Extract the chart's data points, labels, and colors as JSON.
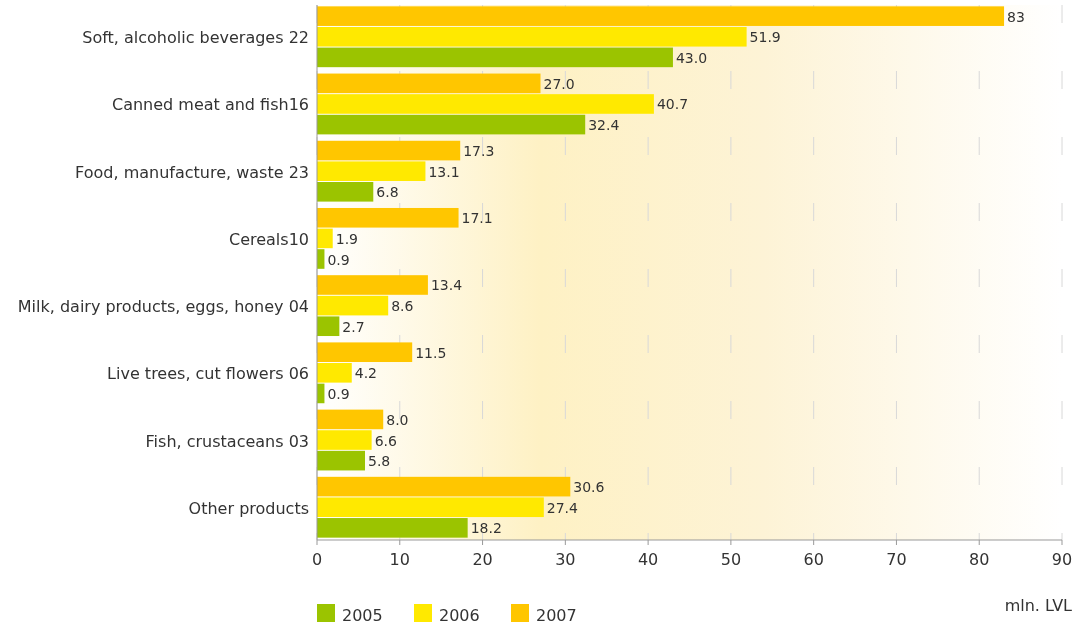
{
  "chart_data": {
    "type": "bar",
    "orientation": "horizontal",
    "xlabel": "mln. LVL",
    "categories": [
      "Soft, alcoholic beverages 22",
      "Canned meat and fish16",
      "Food, manufacture, waste 23",
      "Cereals10",
      "Milk, dairy products, eggs, honey 04",
      "Live trees, cut flowers  06",
      "Fish, crustaceans 03",
      "Other products"
    ],
    "series": [
      {
        "name": "2007",
        "color": "#ffc600",
        "values": [
          83,
          27.0,
          17.3,
          17.1,
          13.4,
          11.5,
          8.0,
          30.6
        ],
        "value_labels": [
          "83",
          "27.0",
          "17.3",
          "17.1",
          "13.4",
          "11.5",
          "8.0",
          "30.6"
        ]
      },
      {
        "name": "2006",
        "color": "#ffe900",
        "values": [
          51.9,
          40.7,
          13.1,
          1.9,
          8.6,
          4.2,
          6.6,
          27.4
        ],
        "value_labels": [
          "51.9",
          "40.7",
          "13.1",
          "1.9",
          "8.6",
          "4.2",
          "6.6",
          "27.4"
        ]
      },
      {
        "name": "2005",
        "color": "#9bc400",
        "values": [
          43.0,
          32.4,
          6.8,
          0.9,
          2.7,
          0.9,
          5.8,
          18.2
        ],
        "value_labels": [
          "43.0",
          "32.4",
          "6.8",
          "0.9",
          "2.7",
          "0.9",
          "5.8",
          "18.2"
        ]
      }
    ],
    "xlim": [
      0,
      90
    ],
    "xticks": [
      0,
      10,
      20,
      30,
      40,
      50,
      60,
      70,
      80,
      90
    ],
    "grid": "x",
    "legend": "bottom left"
  }
}
